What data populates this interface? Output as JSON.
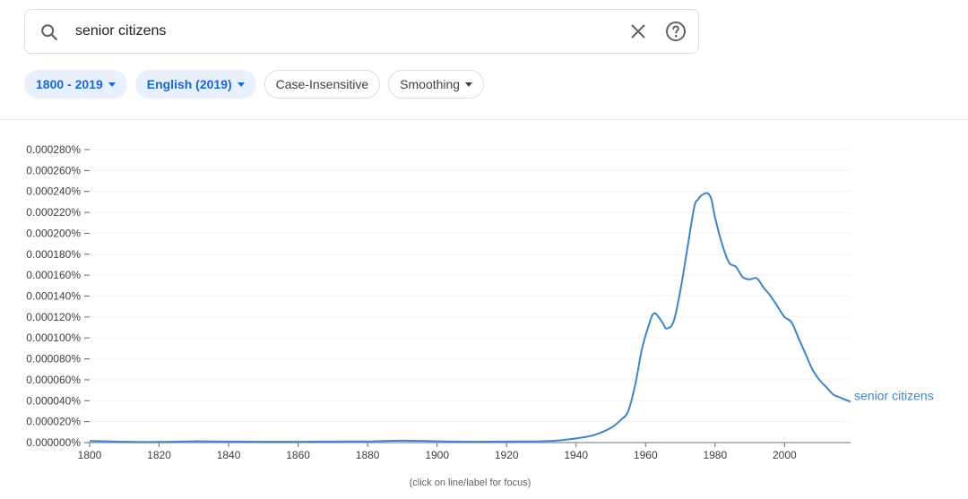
{
  "search": {
    "query": "senior citizens",
    "search_icon": "search-icon",
    "clear_icon": "close-icon",
    "help_icon": "help-circle-icon"
  },
  "filters": {
    "year_range": "1800 - 2019",
    "corpus": "English (2019)",
    "case": "Case-Insensitive",
    "smoothing": "Smoothing"
  },
  "colors": {
    "accent": "#1967d2",
    "line": "#3d85c6",
    "chip_active_bg": "#e8f0fe"
  },
  "chart_data": {
    "type": "line",
    "xlim": [
      1800,
      2019
    ],
    "ylim": [
      0,
      0.00028
    ],
    "x_ticks": [
      1800,
      1820,
      1840,
      1860,
      1880,
      1900,
      1920,
      1940,
      1960,
      1980,
      2000
    ],
    "y_ticks": [
      "0.000000%",
      "0.000020%",
      "0.000040%",
      "0.000060%",
      "0.000080%",
      "0.000100%",
      "0.000120%",
      "0.000140%",
      "0.000160%",
      "0.000180%",
      "0.000200%",
      "0.000220%",
      "0.000240%",
      "0.000260%",
      "0.000280%"
    ],
    "y_tick_values": [
      0,
      2e-05,
      4e-05,
      6e-05,
      8e-05,
      0.0001,
      0.00012,
      0.00014,
      0.00016,
      0.00018,
      0.0002,
      0.00022,
      0.00024,
      0.00026,
      0.00028
    ],
    "grid": true,
    "footnote": "(click on line/label for focus)",
    "series": [
      {
        "name": "senior citizens",
        "x": [
          1800,
          1810,
          1820,
          1830,
          1840,
          1850,
          1860,
          1870,
          1880,
          1890,
          1900,
          1910,
          1920,
          1930,
          1935,
          1940,
          1945,
          1950,
          1953,
          1955,
          1957,
          1959,
          1961,
          1962,
          1963,
          1965,
          1966,
          1968,
          1970,
          1972,
          1974,
          1975,
          1976,
          1977,
          1978,
          1979,
          1980,
          1982,
          1984,
          1986,
          1988,
          1990,
          1992,
          1994,
          1996,
          1998,
          2000,
          2002,
          2004,
          2006,
          2008,
          2010,
          2012,
          2014,
          2016,
          2019
        ],
        "y": [
          1.5e-06,
          8e-07,
          6e-07,
          1.2e-06,
          1e-06,
          8e-07,
          8e-07,
          1e-06,
          1.1e-06,
          1.8e-06,
          1.2e-06,
          8e-07,
          1e-06,
          1.2e-06,
          2e-06,
          4e-06,
          7e-06,
          1.4e-05,
          2.2e-05,
          3e-05,
          5.5e-05,
          9e-05,
          0.000113,
          0.000122,
          0.000123,
          0.000114,
          0.000109,
          0.000115,
          0.000145,
          0.000185,
          0.000225,
          0.000232,
          0.000236,
          0.000238,
          0.000238,
          0.000232,
          0.000215,
          0.00019,
          0.000172,
          0.000168,
          0.000158,
          0.000156,
          0.000157,
          0.000148,
          0.00014,
          0.00013,
          0.00012,
          0.000115,
          0.0001,
          8.5e-05,
          7e-05,
          6e-05,
          5.3e-05,
          4.6e-05,
          4.3e-05,
          3.9e-05
        ]
      }
    ]
  }
}
